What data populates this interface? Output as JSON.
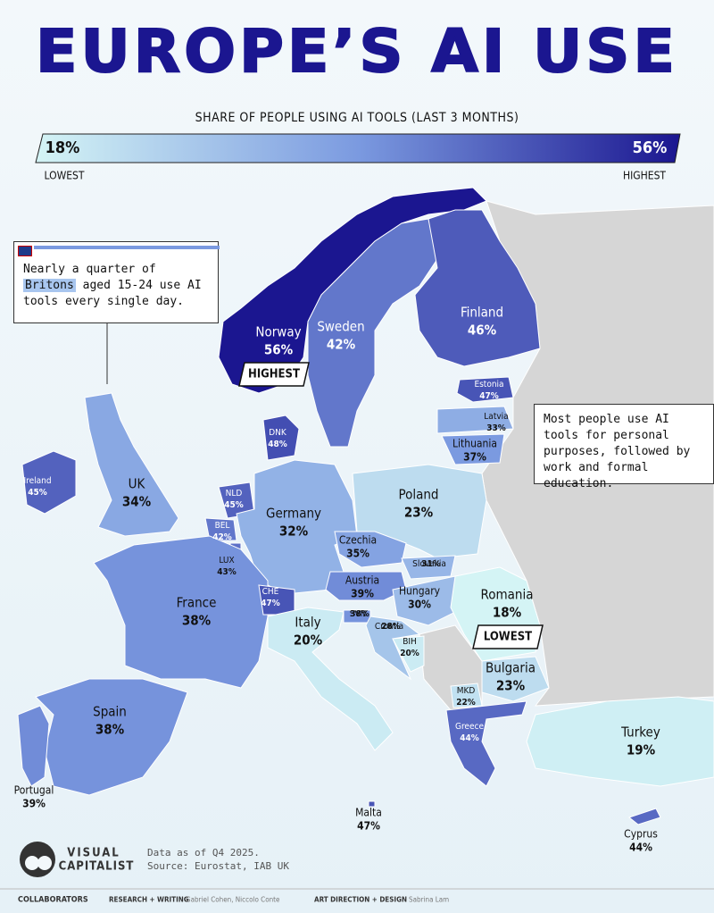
{
  "header": {
    "title": "EUROPE’S AI USE",
    "subtitle": "SHARE OF PEOPLE USING AI TOOLS (LAST 3 MONTHS)"
  },
  "legend": {
    "min": {
      "value": 18,
      "label": "18%"
    },
    "max": {
      "value": 56,
      "label": "56%"
    },
    "min_caption": "LOWEST",
    "max_caption": "HIGHEST",
    "colors": [
      "#d4f4f5",
      "#7b9ae0",
      "#1b1690"
    ]
  },
  "countries": [
    {
      "name": "Norway",
      "value": 56,
      "label": "56%"
    },
    {
      "name": "Sweden",
      "value": 42,
      "label": "42%"
    },
    {
      "name": "Finland",
      "value": 46,
      "label": "46%"
    },
    {
      "name": "Estonia",
      "value": 47,
      "label": "47%"
    },
    {
      "name": "Latvia",
      "value": 33,
      "label": "33%"
    },
    {
      "name": "Lithuania",
      "value": 37,
      "label": "37%"
    },
    {
      "name": "DNK",
      "value": 48,
      "label": "48%"
    },
    {
      "name": "Ireland",
      "value": 45,
      "label": "45%"
    },
    {
      "name": "UK",
      "value": 34,
      "label": "34%"
    },
    {
      "name": "NLD",
      "value": 45,
      "label": "45%"
    },
    {
      "name": "BEL",
      "value": 42,
      "label": "42%"
    },
    {
      "name": "LUX",
      "value": 43,
      "label": "43%"
    },
    {
      "name": "Germany",
      "value": 32,
      "label": "32%"
    },
    {
      "name": "Poland",
      "value": 23,
      "label": "23%"
    },
    {
      "name": "Czechia",
      "value": 35,
      "label": "35%"
    },
    {
      "name": "Slovakia",
      "value": 31,
      "label": "31%"
    },
    {
      "name": "Austria",
      "value": 39,
      "label": "39%"
    },
    {
      "name": "Hungary",
      "value": 30,
      "label": "30%"
    },
    {
      "name": "Romania",
      "value": 18,
      "label": "18%"
    },
    {
      "name": "France",
      "value": 38,
      "label": "38%"
    },
    {
      "name": "CHE",
      "value": 47,
      "label": "47%"
    },
    {
      "name": "Italy",
      "value": 20,
      "label": "20%"
    },
    {
      "name": "SVN",
      "value": 38,
      "label": "38%"
    },
    {
      "name": "Croatia",
      "value": 28,
      "label": "28%"
    },
    {
      "name": "BIH",
      "value": 20,
      "label": "20%"
    },
    {
      "name": "Bulgaria",
      "value": 23,
      "label": "23%"
    },
    {
      "name": "MKD",
      "value": 22,
      "label": "22%"
    },
    {
      "name": "Greece",
      "value": 44,
      "label": "44%"
    },
    {
      "name": "Spain",
      "value": 38,
      "label": "38%"
    },
    {
      "name": "Portugal",
      "value": 39,
      "label": "39%"
    },
    {
      "name": "Turkey",
      "value": 19,
      "label": "19%"
    },
    {
      "name": "Malta",
      "value": 47,
      "label": "47%"
    },
    {
      "name": "Cyprus",
      "value": 44,
      "label": "44%"
    }
  ],
  "callouts": {
    "highest": "HIGHEST",
    "lowest": "LOWEST"
  },
  "notes": {
    "uk": {
      "before": "Nearly a quarter of",
      "highlight": "Britons",
      "after": "aged 15-24 use AI tools every single day."
    },
    "purposes": "Most people use AI tools for personal purposes, followed by work and formal education."
  },
  "footer": {
    "brand_top": "VISUAL",
    "brand_bottom": "CAPITALIST",
    "date": "Data as of Q4 2025.",
    "source": "Source: Eurostat, IAB UK",
    "collaborators": "COLLABORATORS",
    "research_role": "RESEARCH + WRITING",
    "research_names": "Gabriel Cohen, Niccolo Conte",
    "design_role": "ART DIRECTION + DESIGN",
    "design_names": "Sabrina Lam"
  }
}
